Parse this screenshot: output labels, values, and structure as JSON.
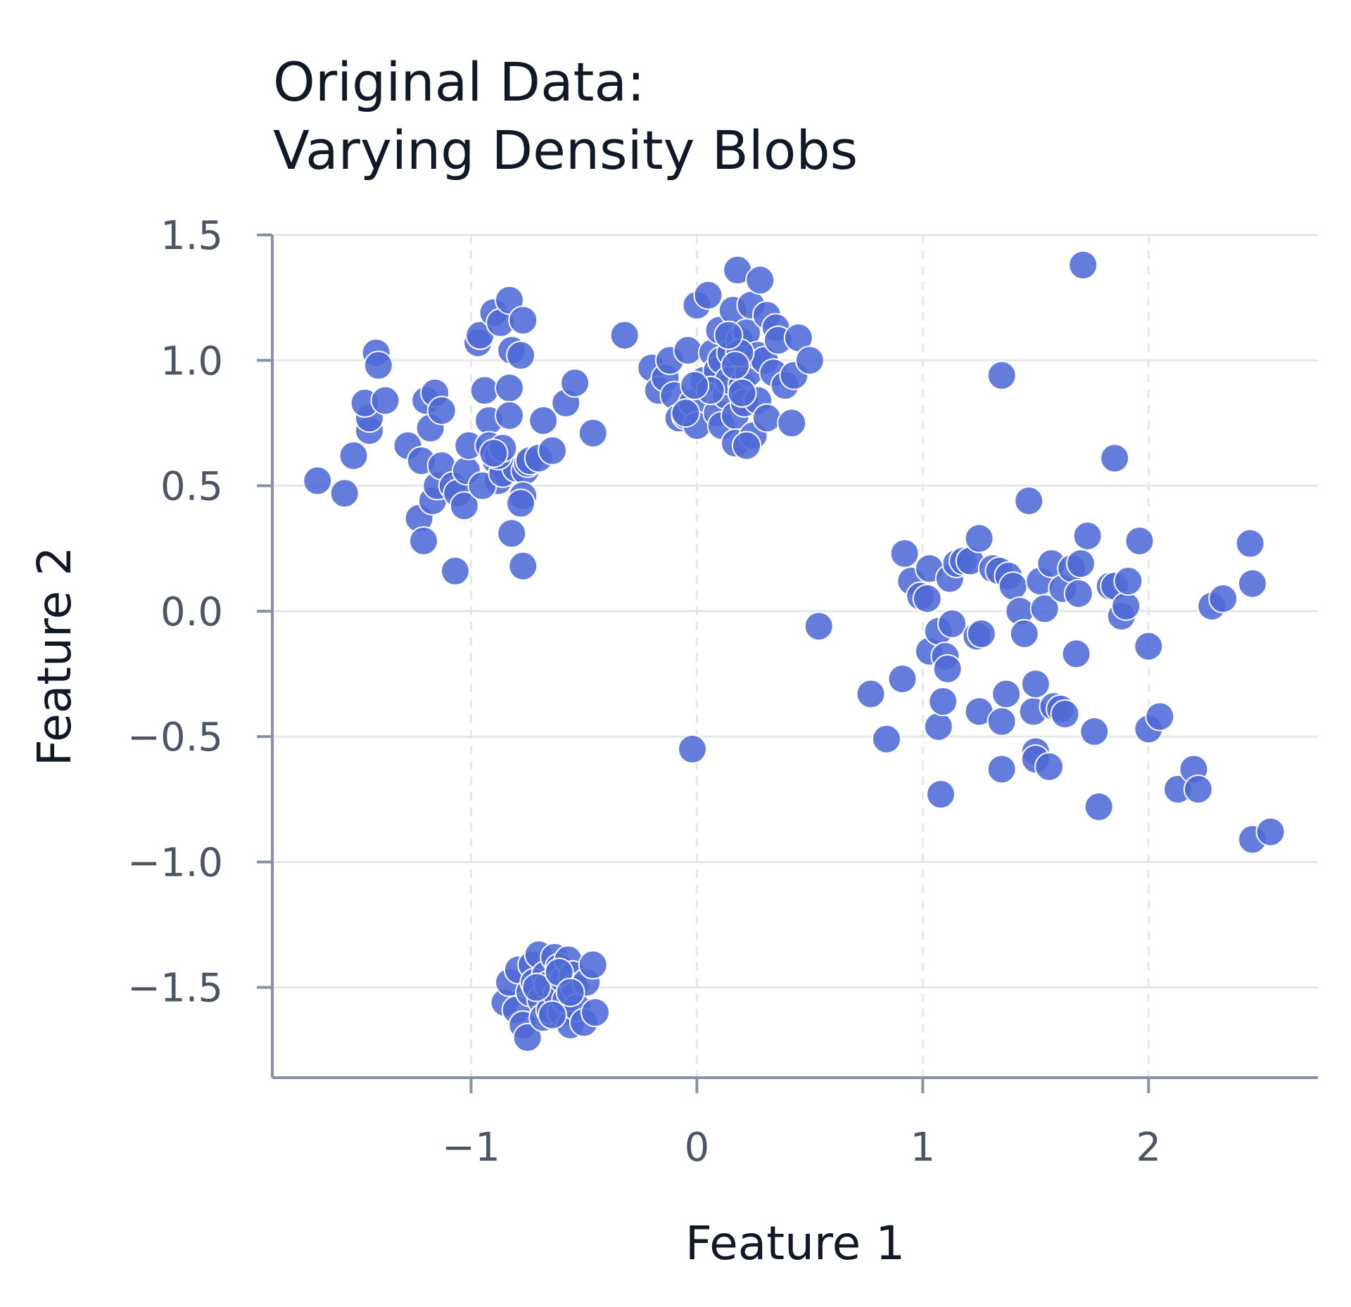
{
  "chart_data": {
    "type": "scatter",
    "title": [
      "Original Data:",
      "Varying Density Blobs"
    ],
    "xlabel": "Feature 1",
    "ylabel": "Feature 2",
    "xlim": [
      -1.88,
      2.75
    ],
    "ylim": [
      -1.86,
      1.5
    ],
    "xticks": [
      -1,
      0,
      1,
      2
    ],
    "xtick_labels": [
      "−1",
      "0",
      "1",
      "2"
    ],
    "yticks": [
      1.5,
      1.0,
      0.5,
      0.0,
      -0.5,
      -1.0,
      -1.5
    ],
    "ytick_labels": [
      "1.5",
      "1.0",
      "0.5",
      "0.0",
      "−0.5",
      "−1.0",
      "−1.5"
    ],
    "grid": true,
    "series": [
      {
        "color": "#4f6ad6",
        "points": [
          [
            -1.68,
            0.52
          ],
          [
            -1.56,
            0.47
          ],
          [
            -1.52,
            0.62
          ],
          [
            -1.45,
            0.72
          ],
          [
            -1.45,
            0.77
          ],
          [
            -1.47,
            0.83
          ],
          [
            -1.42,
            1.03
          ],
          [
            -1.41,
            0.98
          ],
          [
            -1.38,
            0.84
          ],
          [
            -1.28,
            0.66
          ],
          [
            -1.23,
            0.37
          ],
          [
            -1.21,
            0.28
          ],
          [
            -1.22,
            0.6
          ],
          [
            -1.18,
            0.73
          ],
          [
            -1.2,
            0.84
          ],
          [
            -1.16,
            0.87
          ],
          [
            -1.13,
            0.8
          ],
          [
            -1.17,
            0.44
          ],
          [
            -1.15,
            0.5
          ],
          [
            -1.13,
            0.58
          ],
          [
            -1.08,
            0.5
          ],
          [
            -1.06,
            0.47
          ],
          [
            -1.03,
            0.42
          ],
          [
            -1.02,
            0.56
          ],
          [
            -1.01,
            0.66
          ],
          [
            -1.07,
            0.16
          ],
          [
            -0.97,
            1.07
          ],
          [
            -0.96,
            1.1
          ],
          [
            -0.94,
            0.88
          ],
          [
            -0.92,
            0.76
          ],
          [
            -0.92,
            0.66
          ],
          [
            -0.89,
            0.6
          ],
          [
            -0.88,
            0.52
          ],
          [
            -0.95,
            0.5
          ],
          [
            -0.9,
            1.19
          ],
          [
            -0.87,
            1.15
          ],
          [
            -0.83,
            1.24
          ],
          [
            -0.82,
            1.04
          ],
          [
            -0.83,
            0.89
          ],
          [
            -0.83,
            0.78
          ],
          [
            -0.86,
            0.55
          ],
          [
            -0.8,
            0.57
          ],
          [
            -0.76,
            0.56
          ],
          [
            -0.75,
            0.59
          ],
          [
            -0.77,
            0.46
          ],
          [
            -0.78,
            0.43
          ],
          [
            -0.78,
            1.02
          ],
          [
            -0.74,
            0.6
          ],
          [
            -0.7,
            0.61
          ],
          [
            -0.68,
            0.76
          ],
          [
            -0.64,
            0.64
          ],
          [
            -0.58,
            0.83
          ],
          [
            -0.54,
            0.91
          ],
          [
            -0.46,
            0.71
          ],
          [
            -0.82,
            0.31
          ],
          [
            -0.77,
            0.18
          ],
          [
            -0.77,
            1.16
          ],
          [
            -0.88,
            0.62
          ],
          [
            -0.86,
            0.65
          ],
          [
            -0.9,
            0.63
          ],
          [
            -0.32,
            1.1
          ],
          [
            -0.2,
            0.97
          ],
          [
            -0.17,
            0.88
          ],
          [
            -0.14,
            0.93
          ],
          [
            -0.12,
            1.0
          ],
          [
            -0.1,
            0.86
          ],
          [
            -0.08,
            0.77
          ],
          [
            -0.05,
            0.78
          ],
          [
            -0.04,
            1.04
          ],
          [
            -0.02,
            0.83
          ],
          [
            0.0,
            0.74
          ],
          [
            0.0,
            1.22
          ],
          [
            0.03,
            0.92
          ],
          [
            0.05,
            1.26
          ],
          [
            0.07,
            1.03
          ],
          [
            0.09,
            0.96
          ],
          [
            0.09,
            0.79
          ],
          [
            0.1,
            1.12
          ],
          [
            0.11,
            1.0
          ],
          [
            0.11,
            0.74
          ],
          [
            0.13,
            0.86
          ],
          [
            0.14,
            0.92
          ],
          [
            0.15,
            1.03
          ],
          [
            0.16,
            1.2
          ],
          [
            0.17,
            0.78
          ],
          [
            0.17,
            0.67
          ],
          [
            0.18,
            1.36
          ],
          [
            0.19,
            1.08
          ],
          [
            0.2,
            0.9
          ],
          [
            0.21,
            0.83
          ],
          [
            0.22,
            1.11
          ],
          [
            0.23,
            0.95
          ],
          [
            0.24,
            1.22
          ],
          [
            0.25,
            0.7
          ],
          [
            0.27,
            1.02
          ],
          [
            0.27,
            0.84
          ],
          [
            0.28,
            1.32
          ],
          [
            0.3,
            1.0
          ],
          [
            0.31,
            1.18
          ],
          [
            0.31,
            0.77
          ],
          [
            0.34,
            0.95
          ],
          [
            0.35,
            1.13
          ],
          [
            0.36,
            1.08
          ],
          [
            0.39,
            0.9
          ],
          [
            0.42,
            0.75
          ],
          [
            0.43,
            0.94
          ],
          [
            0.45,
            1.09
          ],
          [
            0.5,
            1.0
          ],
          [
            0.19,
            1.03
          ],
          [
            0.22,
            0.66
          ],
          [
            0.14,
            1.1
          ],
          [
            0.06,
            0.88
          ],
          [
            0.2,
            0.87
          ],
          [
            -0.05,
            0.79
          ],
          [
            -0.01,
            0.9
          ],
          [
            0.17,
            0.98
          ],
          [
            0.54,
            -0.06
          ],
          [
            -0.02,
            -0.55
          ],
          [
            1.35,
            0.94
          ],
          [
            1.71,
            1.38
          ],
          [
            1.85,
            0.61
          ],
          [
            1.47,
            0.44
          ],
          [
            0.77,
            -0.33
          ],
          [
            0.84,
            -0.51
          ],
          [
            0.91,
            -0.27
          ],
          [
            0.92,
            0.23
          ],
          [
            0.95,
            0.12
          ],
          [
            0.99,
            0.06
          ],
          [
            1.02,
            0.05
          ],
          [
            1.03,
            0.17
          ],
          [
            1.03,
            -0.16
          ],
          [
            1.07,
            -0.08
          ],
          [
            1.07,
            -0.46
          ],
          [
            1.09,
            -0.36
          ],
          [
            1.08,
            -0.73
          ],
          [
            1.1,
            -0.18
          ],
          [
            1.11,
            -0.23
          ],
          [
            1.12,
            0.13
          ],
          [
            1.13,
            -0.05
          ],
          [
            1.15,
            0.19
          ],
          [
            1.18,
            0.2
          ],
          [
            1.21,
            0.2
          ],
          [
            1.24,
            -0.1
          ],
          [
            1.25,
            0.29
          ],
          [
            1.25,
            -0.4
          ],
          [
            1.26,
            -0.09
          ],
          [
            1.31,
            0.17
          ],
          [
            1.34,
            0.16
          ],
          [
            1.35,
            -0.44
          ],
          [
            1.35,
            -0.63
          ],
          [
            1.37,
            -0.33
          ],
          [
            1.38,
            0.14
          ],
          [
            1.4,
            0.1
          ],
          [
            1.43,
            0.0
          ],
          [
            1.45,
            -0.09
          ],
          [
            1.49,
            -0.4
          ],
          [
            1.5,
            -0.29
          ],
          [
            1.5,
            -0.56
          ],
          [
            1.5,
            -0.59
          ],
          [
            1.52,
            0.12
          ],
          [
            1.54,
            0.01
          ],
          [
            1.56,
            -0.62
          ],
          [
            1.57,
            0.19
          ],
          [
            1.58,
            -0.38
          ],
          [
            1.61,
            -0.39
          ],
          [
            1.62,
            0.09
          ],
          [
            1.63,
            -0.41
          ],
          [
            1.66,
            0.17
          ],
          [
            1.68,
            -0.17
          ],
          [
            1.69,
            0.07
          ],
          [
            1.7,
            0.19
          ],
          [
            1.73,
            0.3
          ],
          [
            1.76,
            -0.48
          ],
          [
            1.78,
            -0.78
          ],
          [
            1.83,
            0.1
          ],
          [
            1.85,
            0.1
          ],
          [
            1.88,
            -0.02
          ],
          [
            1.9,
            0.02
          ],
          [
            1.91,
            0.12
          ],
          [
            1.96,
            0.28
          ],
          [
            2.0,
            -0.14
          ],
          [
            2.0,
            -0.47
          ],
          [
            2.05,
            -0.42
          ],
          [
            2.13,
            -0.71
          ],
          [
            2.2,
            -0.63
          ],
          [
            2.22,
            -0.71
          ],
          [
            2.28,
            0.02
          ],
          [
            2.33,
            0.05
          ],
          [
            2.45,
            0.27
          ],
          [
            2.46,
            0.11
          ],
          [
            2.46,
            -0.91
          ],
          [
            2.54,
            -0.88
          ],
          [
            -0.85,
            -1.56
          ],
          [
            -0.83,
            -1.48
          ],
          [
            -0.8,
            -1.59
          ],
          [
            -0.79,
            -1.43
          ],
          [
            -0.77,
            -1.65
          ],
          [
            -0.75,
            -1.7
          ],
          [
            -0.74,
            -1.52
          ],
          [
            -0.73,
            -1.41
          ],
          [
            -0.72,
            -1.48
          ],
          [
            -0.7,
            -1.37
          ],
          [
            -0.69,
            -1.55
          ],
          [
            -0.68,
            -1.62
          ],
          [
            -0.67,
            -1.45
          ],
          [
            -0.66,
            -1.49
          ],
          [
            -0.65,
            -1.59
          ],
          [
            -0.63,
            -1.38
          ],
          [
            -0.62,
            -1.53
          ],
          [
            -0.61,
            -1.42
          ],
          [
            -0.6,
            -1.6
          ],
          [
            -0.59,
            -1.47
          ],
          [
            -0.58,
            -1.55
          ],
          [
            -0.57,
            -1.39
          ],
          [
            -0.56,
            -1.65
          ],
          [
            -0.55,
            -1.45
          ],
          [
            -0.54,
            -1.5
          ],
          [
            -0.53,
            -1.58
          ],
          [
            -0.5,
            -1.64
          ],
          [
            -0.49,
            -1.48
          ],
          [
            -0.46,
            -1.41
          ],
          [
            -0.45,
            -1.6
          ],
          [
            -0.71,
            -1.5
          ],
          [
            -0.61,
            -1.44
          ],
          [
            -0.64,
            -1.61
          ],
          [
            -0.56,
            -1.52
          ]
        ]
      }
    ]
  }
}
